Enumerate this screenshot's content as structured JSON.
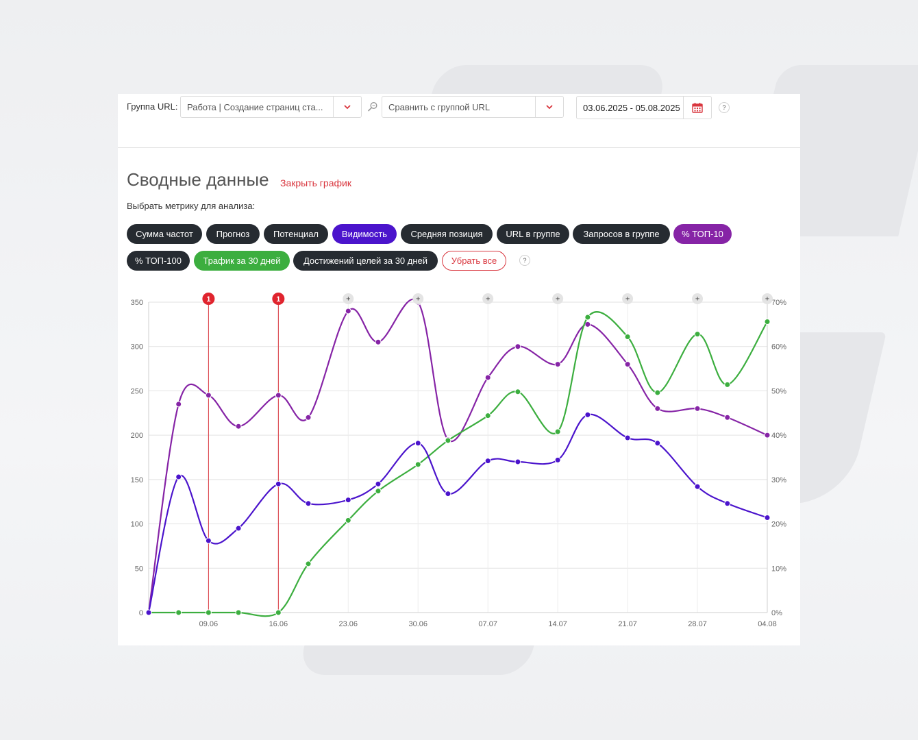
{
  "filters": {
    "group_label": "Группа URL:",
    "group_value": "Работа | Создание страниц ста...",
    "compare_placeholder": "Сравнить с группой URL",
    "date_range": "03.06.2025 - 05.08.2025",
    "help": "?"
  },
  "section": {
    "title": "Сводные данные",
    "close_link": "Закрыть график",
    "metric_prompt": "Выбрать метрику для анализа:"
  },
  "metrics": [
    {
      "label": "Сумма частот",
      "state": "inactive"
    },
    {
      "label": "Прогноз",
      "state": "inactive"
    },
    {
      "label": "Потенциал",
      "state": "inactive"
    },
    {
      "label": "Видимость",
      "state": "active",
      "color": "#4b14cc"
    },
    {
      "label": "Средняя позиция",
      "state": "inactive"
    },
    {
      "label": "URL в группе",
      "state": "inactive"
    },
    {
      "label": "Запросов в группе",
      "state": "inactive"
    },
    {
      "label": "% ТОП-10",
      "state": "active",
      "color": "#8624a6"
    },
    {
      "label": "% ТОП-100",
      "state": "inactive"
    },
    {
      "label": "Трафик за 30 дней",
      "state": "active",
      "color": "#3cae3f"
    },
    {
      "label": "Достижений целей за 30 дней",
      "state": "inactive"
    },
    {
      "label": "Убрать все",
      "state": "clear"
    }
  ],
  "chart_data": {
    "type": "line",
    "x": [
      "03.06",
      "06.06",
      "09.06",
      "12.06",
      "16.06",
      "19.06",
      "23.06",
      "26.06",
      "30.06",
      "03.07",
      "07.07",
      "10.07",
      "14.07",
      "17.07",
      "21.07",
      "24.07",
      "28.07",
      "31.07",
      "04.08"
    ],
    "x_ticks": [
      "09.06",
      "16.06",
      "23.06",
      "30.06",
      "07.07",
      "14.07",
      "21.07",
      "28.07",
      "04.08"
    ],
    "y_left": {
      "min": 0,
      "max": 350,
      "ticks": [
        "0",
        "50",
        "100",
        "150",
        "200",
        "250",
        "300",
        "350"
      ]
    },
    "y_right": {
      "min": 0,
      "max": 70,
      "ticks": [
        "0%",
        "10%",
        "20%",
        "30%",
        "40%",
        "50%",
        "60%",
        "70%"
      ]
    },
    "grid": true,
    "series": [
      {
        "axis": "right",
        "color": "#8624a6",
        "values": [
          0,
          47,
          49,
          42,
          49,
          44,
          68,
          61,
          70,
          39,
          53,
          60,
          56,
          65,
          56,
          46,
          46,
          44,
          40
        ]
      },
      {
        "axis": "left",
        "color": "#3cae3f",
        "values": [
          0,
          0,
          0,
          0,
          0,
          55,
          104,
          137,
          167,
          194,
          222,
          249,
          204,
          333,
          311,
          248,
          314,
          257,
          328
        ]
      },
      {
        "axis": "left",
        "color": "#4b14cc",
        "values": [
          0,
          153,
          81,
          95,
          145,
          123,
          127,
          145,
          191,
          134,
          171,
          170,
          172,
          223,
          197,
          191,
          142,
          123,
          107
        ]
      }
    ],
    "annotations": [
      {
        "x": "09.06",
        "label": "1",
        "type": "event"
      },
      {
        "x": "16.06",
        "label": "1",
        "type": "event"
      },
      {
        "x": "23.06",
        "label": "+",
        "type": "add"
      },
      {
        "x": "30.06",
        "label": "+",
        "type": "add"
      },
      {
        "x": "07.07",
        "label": "+",
        "type": "add"
      },
      {
        "x": "14.07",
        "label": "+",
        "type": "add"
      },
      {
        "x": "21.07",
        "label": "+",
        "type": "add"
      },
      {
        "x": "28.07",
        "label": "+",
        "type": "add"
      },
      {
        "x": "04.08",
        "label": "+",
        "type": "add"
      }
    ]
  }
}
